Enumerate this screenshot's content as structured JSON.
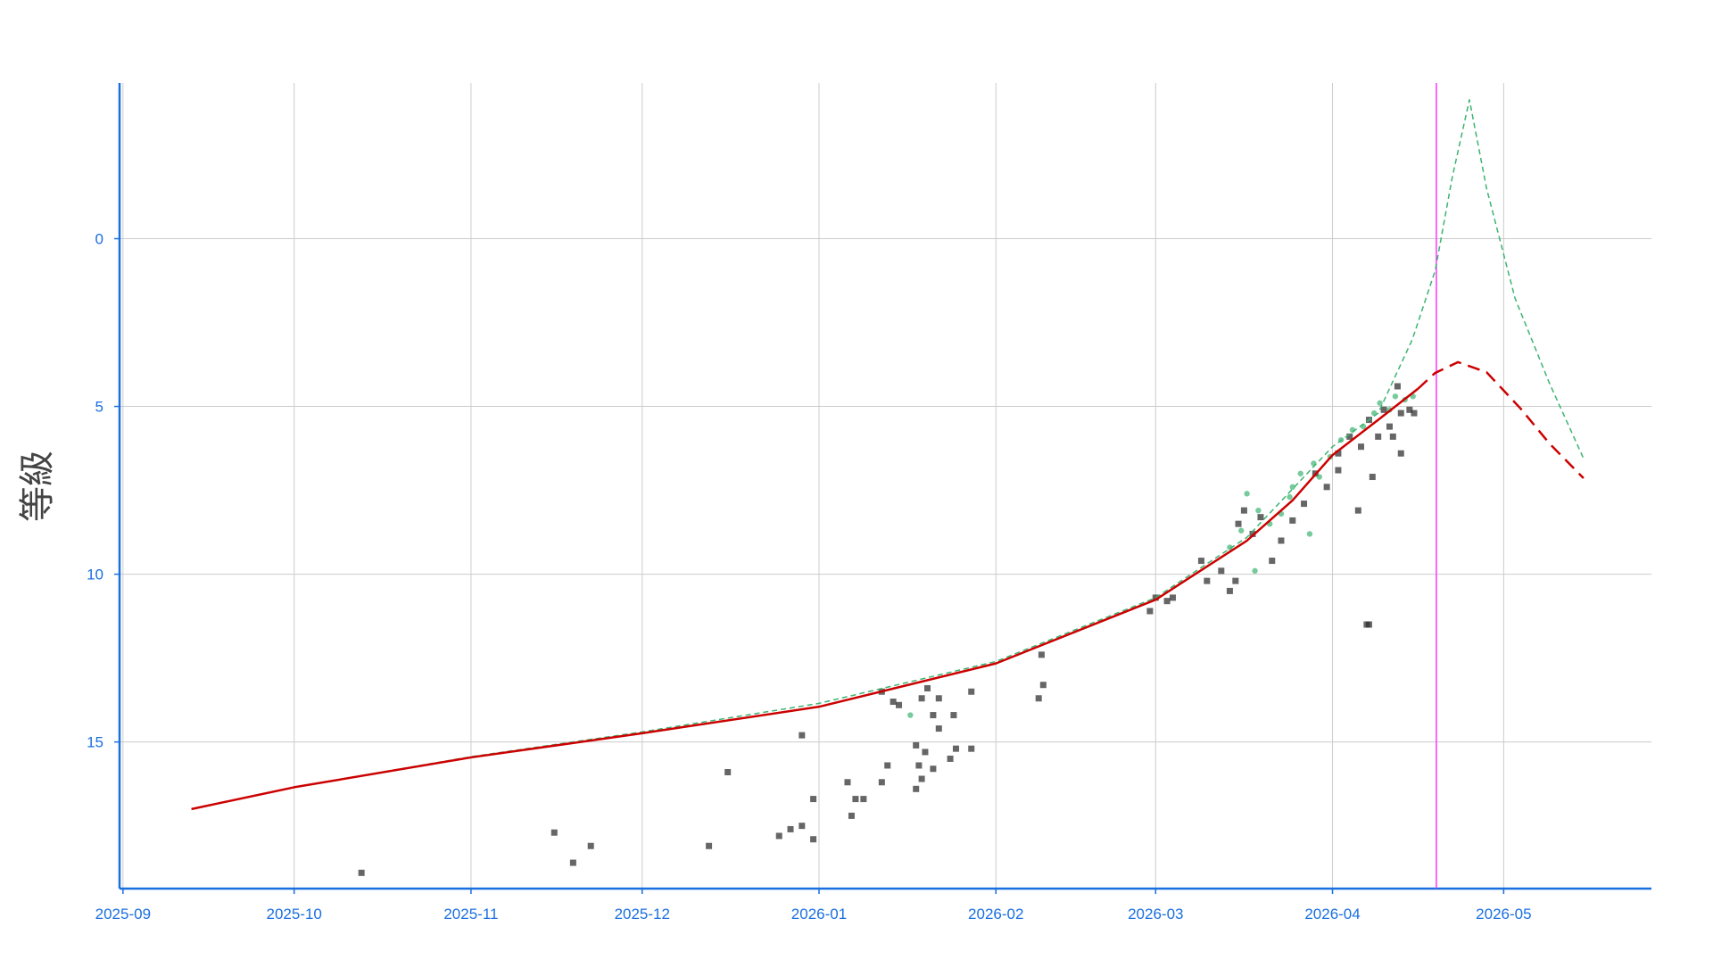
{
  "chart_data": {
    "type": "scatter",
    "y_label": "等級",
    "xlim": [
      -0.6,
      267.9
    ],
    "ylim": [
      -4.64,
      19.37
    ],
    "y_inverted": true,
    "grid": true,
    "xticks": [
      {
        "value": 0,
        "label": "2025-09"
      },
      {
        "value": 30,
        "label": "2025-10"
      },
      {
        "value": 61,
        "label": "2025-11"
      },
      {
        "value": 91,
        "label": "2025-12"
      },
      {
        "value": 122,
        "label": "2026-01"
      },
      {
        "value": 153,
        "label": "2026-02"
      },
      {
        "value": 181,
        "label": "2026-03"
      },
      {
        "value": 212,
        "label": "2026-04"
      },
      {
        "value": 242,
        "label": "2026-05"
      }
    ],
    "yticks": [
      0,
      5,
      10,
      15
    ],
    "vline": {
      "x": 230.2,
      "color": "#ff33ff"
    },
    "series": [
      {
        "kind": "scatter",
        "marker": "square",
        "color": "#333333",
        "x": [
          41.8,
          75.6,
          78.9,
          82,
          102.7,
          106,
          115,
          117,
          119,
          119,
          121,
          121,
          127,
          127.7,
          128.4,
          129.8,
          133,
          133,
          134,
          135,
          136,
          139,
          139,
          139.5,
          140,
          140,
          140.6,
          141,
          142,
          142,
          143,
          143,
          145,
          145.6,
          146,
          148.7,
          148.7,
          160.5,
          161,
          161.3,
          180,
          181,
          183,
          184,
          189,
          190,
          192.5,
          194,
          195,
          195.5,
          196.5,
          198,
          199.4,
          201.4,
          203,
          205,
          207,
          209,
          211,
          213,
          213,
          215,
          216.5,
          217,
          218,
          218.4,
          218.4,
          219,
          220,
          221,
          222,
          222.6,
          223.4,
          224,
          224,
          225.5,
          226.3
        ],
        "values": [
          18.9,
          17.7,
          18.6,
          18.1,
          18.1,
          15.9,
          17.8,
          17.6,
          17.5,
          14.8,
          17.9,
          16.7,
          16.2,
          17.2,
          16.7,
          16.7,
          16.2,
          13.5,
          15.7,
          13.8,
          13.9,
          15.1,
          16.4,
          15.7,
          13.7,
          16.1,
          15.3,
          13.4,
          15.8,
          14.2,
          13.7,
          14.6,
          15.5,
          14.2,
          15.2,
          13.5,
          15.2,
          13.7,
          12.4,
          13.3,
          11.1,
          10.7,
          10.8,
          10.7,
          9.6,
          10.2,
          9.9,
          10.5,
          10.2,
          8.5,
          8.1,
          8.8,
          8.3,
          9.6,
          9.0,
          8.4,
          7.9,
          7.0,
          7.4,
          6.9,
          6.4,
          5.9,
          8.1,
          6.2,
          11.5,
          11.5,
          5.4,
          7.1,
          5.9,
          5.1,
          5.6,
          5.9,
          4.4,
          6.4,
          5.2,
          5.1,
          5.2
        ]
      },
      {
        "kind": "scatter",
        "marker": "circle",
        "color": "#3cb371",
        "x": [
          138,
          194,
          196,
          197,
          198.4,
          199,
          201,
          203,
          204.5,
          205,
          206.4,
          208,
          208.7,
          209.7,
          211.6,
          213.5,
          215.5,
          217.4,
          219.3,
          220.3,
          222,
          223,
          224.7,
          226.1
        ],
        "values": [
          14.2,
          9.2,
          8.7,
          7.6,
          9.9,
          8.1,
          8.5,
          8.2,
          7.7,
          7.4,
          7.0,
          8.8,
          6.7,
          7.1,
          6.5,
          6.0,
          5.7,
          5.6,
          5.2,
          4.9,
          5.1,
          4.7,
          4.8,
          4.7
        ]
      },
      {
        "kind": "line",
        "dash": "6,4",
        "width": 1.5,
        "color": "#3cb371",
        "x": [
          12,
          30,
          61,
          91,
          122,
          153,
          181,
          197,
          212,
          220,
          226,
          230,
          233,
          236,
          239,
          244,
          250,
          256
        ],
        "values": [
          17.0,
          16.35,
          15.44,
          14.7,
          13.85,
          12.6,
          10.7,
          8.9,
          6.2,
          5.2,
          3.0,
          0.95,
          -1.84,
          -4.14,
          -1.5,
          1.78,
          4.3,
          6.55
        ]
      },
      {
        "kind": "line",
        "dash": "",
        "width": 2.5,
        "color": "#cc0000",
        "x": [
          12,
          30,
          61,
          91,
          122,
          153,
          181,
          197,
          205,
          212,
          220,
          227
        ],
        "values": [
          17.0,
          16.35,
          15.46,
          14.74,
          13.95,
          12.66,
          10.76,
          9.0,
          7.8,
          6.45,
          5.4,
          4.47
        ]
      },
      {
        "kind": "line",
        "dash": "14,8",
        "width": 2.5,
        "color": "#cc0000",
        "x": [
          227,
          230,
          234,
          239,
          245,
          250,
          256
        ],
        "values": [
          4.47,
          4.0,
          3.68,
          3.98,
          5.07,
          6.1,
          7.14
        ]
      }
    ]
  }
}
